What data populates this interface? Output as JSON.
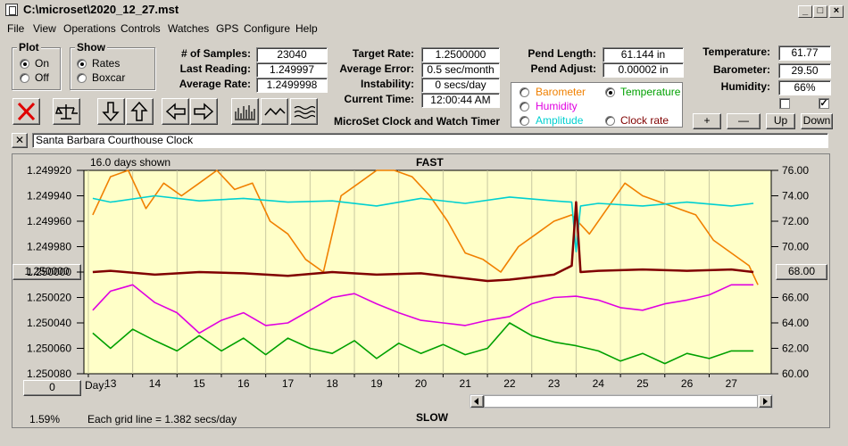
{
  "window": {
    "title": "C:\\microset\\2020_12_27.mst"
  },
  "menu": [
    "File",
    "View",
    "Operations",
    "Controls",
    "Watches",
    "GPS",
    "Configure",
    "Help"
  ],
  "plot_group": {
    "title": "Plot",
    "on": "On",
    "off": "Off",
    "selected": "On"
  },
  "show_group": {
    "title": "Show",
    "rates": "Rates",
    "boxcar": "Boxcar",
    "selected": "Rates"
  },
  "stats": {
    "samples_label": "# of Samples:",
    "samples": "23040",
    "last_label": "Last Reading:",
    "last": "1.249997",
    "avg_label": "Average Rate:",
    "avg": "1.2499998"
  },
  "targets": {
    "target_label": "Target Rate:",
    "target": "1.2500000",
    "err_label": "Average Error:",
    "err": "0.5 sec/month",
    "inst_label": "Instability:",
    "inst": "0 secs/day",
    "time_label": "Current Time:",
    "time": "12:00:44 AM"
  },
  "pendulum": {
    "len_label": "Pend Length:",
    "len": "61.144 in",
    "adj_label": "Pend Adjust:",
    "adj": "0.00002 in"
  },
  "env": {
    "temp_label": "Temperature:",
    "temp": "61.77",
    "baro_label": "Barometer:",
    "baro": "29.50",
    "hum_label": "Humidity:",
    "hum": "66%"
  },
  "sensor_options": {
    "barometer": "Barometer",
    "temperature": "Temperature",
    "humidity": "Humidity",
    "amplitude": "Amplitude",
    "clock_rate": "Clock rate",
    "selected": "Temperature",
    "colors": {
      "barometer": "#f08000",
      "temperature": "#00a000",
      "humidity": "#e000e0",
      "amplitude": "#00d0d0",
      "clock_rate": "#800000"
    }
  },
  "brand": "MicroSet Clock and Watch Timer",
  "adjust_buttons": {
    "plus": "+",
    "minus": "—",
    "up": "Up",
    "down": "Down"
  },
  "clock_name": "Santa Barbara Courthouse Clock",
  "close_x": "✕",
  "chart_header": {
    "days_shown": "16.0 days shown",
    "fast": "FAST",
    "slow": "SLOW"
  },
  "left_buttons": {
    "center": "1.250000",
    "zero": "0"
  },
  "right_button": "68.00",
  "status": {
    "pct": "1.59%",
    "grid": "Each grid line = 1.382 secs/day",
    "day_label": "Day:"
  },
  "chart_data": {
    "type": "line",
    "x_label": "Day:",
    "x_ticks": [
      13,
      14,
      15,
      16,
      17,
      18,
      19,
      20,
      21,
      22,
      23,
      24,
      25,
      26,
      27
    ],
    "y_left_ticks": [
      "1.249920",
      "1.249940",
      "1.249960",
      "1.249980",
      "1.250000",
      "1.250020",
      "1.250040",
      "1.250060",
      "1.250080"
    ],
    "y_right_ticks": [
      "76.00",
      "74.00",
      "72.00",
      "70.00",
      "68.00",
      "66.00",
      "64.00",
      "62.00",
      "60.00"
    ],
    "y_right_range": [
      60,
      76
    ],
    "series": [
      {
        "color": "#f08000",
        "x": [
          12.6,
          13,
          13.4,
          13.8,
          14.2,
          14.6,
          15,
          15.4,
          15.8,
          16.2,
          16.6,
          17,
          17.4,
          17.8,
          18.2,
          18.6,
          19,
          19.4,
          19.8,
          20.2,
          20.6,
          21,
          21.4,
          21.8,
          22.2,
          22.6,
          23,
          23.4,
          23.8,
          24.2,
          24.6,
          25,
          25.4,
          25.8,
          26.2,
          26.6,
          27,
          27.4,
          27.6
        ],
        "y": [
          72.5,
          75.5,
          76,
          73,
          75,
          74,
          75,
          76,
          74.5,
          75,
          72,
          71,
          69,
          68,
          74,
          75,
          76,
          76,
          75.5,
          74,
          72,
          69.5,
          69,
          68,
          70,
          71,
          72,
          72.5,
          71,
          73,
          75,
          74,
          73.5,
          73,
          72.5,
          70.5,
          69.5,
          68.5,
          67
        ]
      },
      {
        "color": "#00d0d0",
        "x": [
          12.6,
          13,
          14,
          15,
          16,
          17,
          18,
          19,
          20,
          21,
          22,
          23,
          23.4,
          23.5,
          23.6,
          24,
          25,
          26,
          27,
          27.5
        ],
        "y": [
          73.8,
          73.5,
          74,
          73.6,
          73.8,
          73.5,
          73.6,
          73.2,
          73.8,
          73.4,
          73.9,
          73.6,
          73.5,
          69.6,
          73.2,
          73.4,
          73.2,
          73.5,
          73.2,
          73.4
        ]
      },
      {
        "color": "#800000",
        "x": [
          12.6,
          13,
          14,
          15,
          16,
          17,
          18,
          19,
          20,
          21,
          21.5,
          22,
          22.5,
          23,
          23.4,
          23.5,
          23.6,
          24,
          25,
          26,
          27,
          27.5
        ],
        "y": [
          68,
          68.1,
          67.8,
          68,
          67.9,
          67.7,
          68,
          67.8,
          67.9,
          67.5,
          67.3,
          67.4,
          67.6,
          67.8,
          68.5,
          73.5,
          68,
          68.1,
          68.2,
          68.1,
          68.2,
          68
        ]
      },
      {
        "color": "#e000e0",
        "x": [
          12.6,
          13,
          13.5,
          14,
          14.5,
          15,
          15.5,
          16,
          16.5,
          17,
          17.5,
          18,
          18.5,
          19,
          19.5,
          20,
          20.5,
          21,
          21.5,
          22,
          22.5,
          23,
          23.5,
          24,
          24.5,
          25,
          25.5,
          26,
          26.5,
          27,
          27.5
        ],
        "y": [
          65,
          66.5,
          67,
          65.6,
          64.8,
          63.2,
          64.2,
          64.8,
          63.8,
          64,
          65,
          66,
          66.3,
          65.5,
          64.8,
          64.2,
          64,
          63.8,
          64.2,
          64.5,
          65.5,
          66,
          66.1,
          65.8,
          65.2,
          65,
          65.5,
          65.8,
          66.2,
          67,
          67
        ]
      },
      {
        "color": "#00a000",
        "x": [
          12.6,
          13,
          13.5,
          14,
          14.5,
          15,
          15.5,
          16,
          16.5,
          17,
          17.5,
          18,
          18.5,
          19,
          19.5,
          20,
          20.5,
          21,
          21.5,
          22,
          22.5,
          23,
          23.5,
          24,
          24.5,
          25,
          25.5,
          26,
          26.5,
          27,
          27.5
        ],
        "y": [
          63.2,
          62,
          63.5,
          62.6,
          61.8,
          63,
          61.8,
          62.8,
          61.5,
          62.8,
          62,
          61.6,
          62.6,
          61.2,
          62.4,
          61.6,
          62.3,
          61.5,
          62,
          64,
          63,
          62.5,
          62.2,
          61.8,
          61,
          61.6,
          60.8,
          61.6,
          61.2,
          61.8,
          61.8
        ]
      }
    ]
  }
}
